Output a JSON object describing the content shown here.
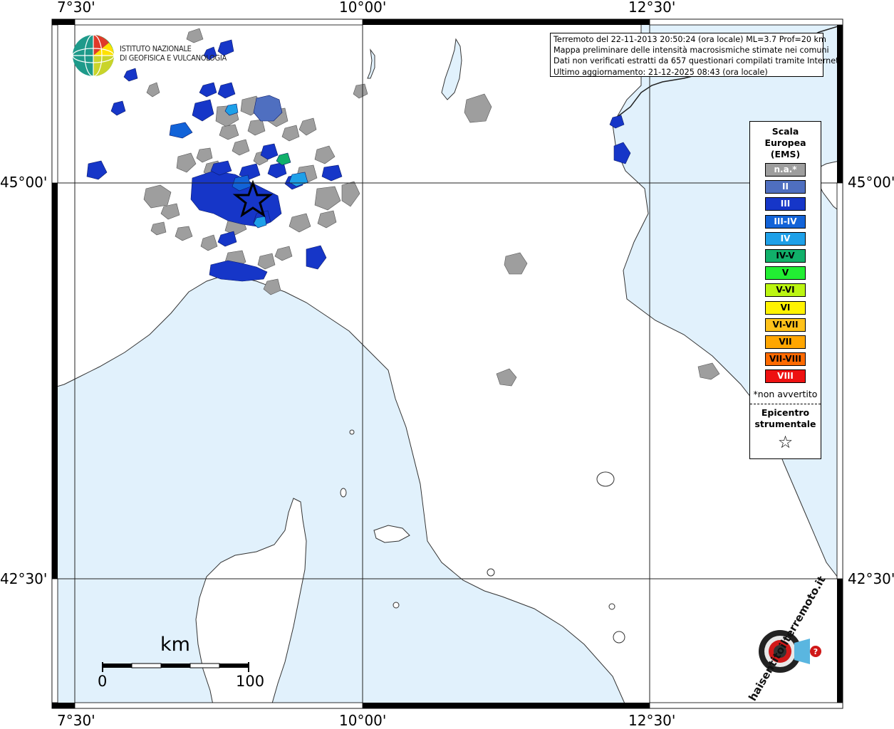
{
  "info": {
    "line1": "Terremoto del 22-11-2013 20:50:24 (ora locale) ML=3.7 Prof=20 km",
    "line2": "Mappa preliminare delle intensità macrosismiche stimate nei comuni",
    "line3": "Dati non verificati estratti da 657 questionari compilati tramite Internet.",
    "line4": "Ultimo aggiornamento: 21-12-2025 08:43 (ora locale)"
  },
  "axes": {
    "lon_labels": [
      "7°30'",
      "10°00'",
      "12°30'"
    ],
    "lat_labels": [
      "45°00'",
      "42°30'"
    ]
  },
  "institute": {
    "line1": "ISTITUTO NAZIONALE",
    "line2": "DI GEOFISICA E VULCANOLOGIA"
  },
  "legend": {
    "title1": "Scala",
    "title2": "Europea",
    "title3": "(EMS)",
    "items": [
      {
        "label": "n.a.*",
        "color": "#9e9e9e",
        "text_color": "#ffffff"
      },
      {
        "label": "II",
        "color": "#4f6fc0",
        "text_color": "#ffffff"
      },
      {
        "label": "III",
        "color": "#1636c8",
        "text_color": "#ffffff"
      },
      {
        "label": "III-IV",
        "color": "#1263d8",
        "text_color": "#ffffff"
      },
      {
        "label": "IV",
        "color": "#1ea0e8",
        "text_color": "#ffffff"
      },
      {
        "label": "IV-V",
        "color": "#11b06a",
        "text_color": "#000000"
      },
      {
        "label": "V",
        "color": "#22ee33",
        "text_color": "#000000"
      },
      {
        "label": "V-VI",
        "color": "#bbf511",
        "text_color": "#000000"
      },
      {
        "label": "VI",
        "color": "#fff200",
        "text_color": "#000000"
      },
      {
        "label": "VI-VII",
        "color": "#ffc21a",
        "text_color": "#000000"
      },
      {
        "label": "VII",
        "color": "#ffa600",
        "text_color": "#000000"
      },
      {
        "label": "VII-VIII",
        "color": "#ff6a00",
        "text_color": "#000000"
      },
      {
        "label": "VIII",
        "color": "#ee1111",
        "text_color": "#ffffff"
      }
    ],
    "note": "*non avvertito",
    "epicentre1": "Epicentro",
    "epicentre2": "strumentale",
    "star": "☆"
  },
  "scalebar": {
    "unit": "km",
    "min": "0",
    "max": "100"
  },
  "branding": {
    "logo_text": "haisentitoilterremoto.it",
    "url": "www"
  },
  "colors": {
    "sea": "#e1f1fc",
    "land": "#ffffff",
    "na": "#9e9e9e",
    "ii": "#4f6fc0",
    "iii": "#1636c8",
    "iiiiv": "#1263d8",
    "iv": "#1ea0e8",
    "ivv": "#11b06a"
  }
}
